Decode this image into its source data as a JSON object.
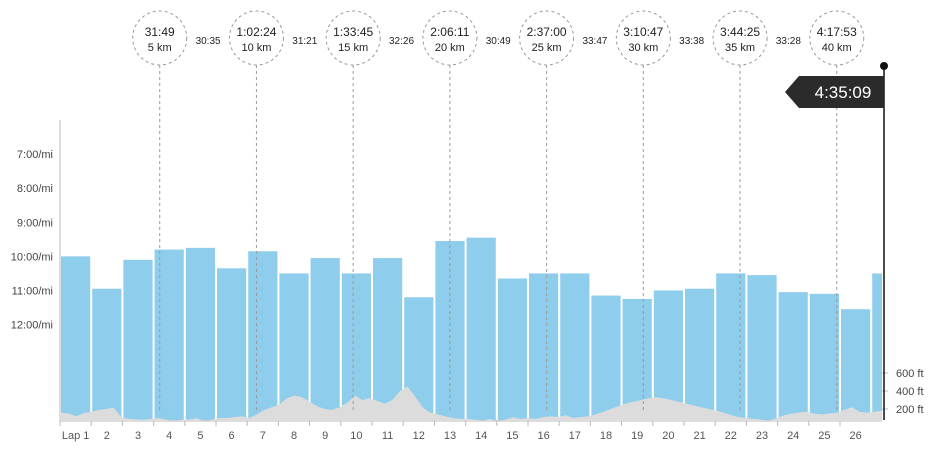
{
  "chart_data": {
    "type": "bar",
    "categories": [
      "Lap 1",
      "2",
      "3",
      "4",
      "5",
      "6",
      "7",
      "8",
      "9",
      "10",
      "11",
      "12",
      "13",
      "14",
      "15",
      "16",
      "17",
      "18",
      "19",
      "20",
      "21",
      "22",
      "23",
      "24",
      "25",
      "26",
      ""
    ],
    "series": [
      {
        "values": [
          10.0,
          10.95,
          10.1,
          9.8,
          9.75,
          10.35,
          9.85,
          10.5,
          10.05,
          10.5,
          10.05,
          11.2,
          9.55,
          9.45,
          10.65,
          10.5,
          10.5,
          11.15,
          11.25,
          11.0,
          10.95,
          10.5,
          10.55,
          11.05,
          11.1,
          11.55,
          10.5
        ]
      }
    ],
    "y_ticks": [
      "7:00/mi",
      "8:00/mi",
      "9:00/mi",
      "10:00/mi",
      "11:00/mi",
      "12:00/mi"
    ],
    "y_tick_values": [
      7,
      8,
      9,
      10,
      11,
      12
    ],
    "ylim": [
      6.0,
      14.8
    ],
    "y_axis": "inverted pace (min/mi)",
    "elevation": {
      "ticks": [
        "600 ft",
        "400 ft",
        "200 ft"
      ],
      "tick_values": [
        600,
        400,
        200
      ],
      "profile_ft": [
        160,
        150,
        120,
        155,
        170,
        190,
        200,
        215,
        110,
        90,
        85,
        80,
        90,
        100,
        80,
        60,
        80,
        80,
        100,
        60,
        80,
        100,
        100,
        110,
        120,
        100,
        140,
        190,
        220,
        250,
        320,
        350,
        330,
        280,
        230,
        200,
        190,
        220,
        270,
        350,
        300,
        320,
        290,
        260,
        300,
        400,
        450,
        340,
        220,
        160,
        140,
        120,
        100,
        90,
        90,
        80,
        70,
        90,
        60,
        80,
        110,
        90,
        100,
        90,
        110,
        120,
        110,
        130,
        100,
        110,
        120,
        140,
        170,
        200,
        230,
        260,
        280,
        300,
        320,
        330,
        320,
        300,
        280,
        260,
        240,
        220,
        200,
        180,
        160,
        130,
        110,
        100,
        90,
        80,
        70,
        100,
        130,
        150,
        160,
        170,
        150,
        140,
        150,
        160,
        190,
        220,
        170,
        160,
        170,
        180
      ]
    },
    "splits": [
      {
        "time": "31:49",
        "label": "5 km",
        "lap_pos": 3.1
      },
      {
        "time": "1:02:24",
        "label": "10 km",
        "lap_pos": 6.2
      },
      {
        "time": "1:33:45",
        "label": "15 km",
        "lap_pos": 9.3
      },
      {
        "time": "2:06:11",
        "label": "20 km",
        "lap_pos": 12.4
      },
      {
        "time": "2:37:00",
        "label": "25 km",
        "lap_pos": 15.5
      },
      {
        "time": "3:10:47",
        "label": "30 km",
        "lap_pos": 18.6
      },
      {
        "time": "3:44:25",
        "label": "35 km",
        "lap_pos": 21.7
      },
      {
        "time": "4:17:53",
        "label": "40 km",
        "lap_pos": 24.8
      }
    ],
    "segments": [
      "30:35",
      "31:21",
      "32:26",
      "30:49",
      "33:47",
      "33:38",
      "33:28"
    ],
    "finish": "4:35:09",
    "colors": {
      "bar": "#8fcdec",
      "elevation": "#dcdcdc",
      "axis": "#bbbbbb",
      "dash": "#999999"
    },
    "grid": false
  }
}
